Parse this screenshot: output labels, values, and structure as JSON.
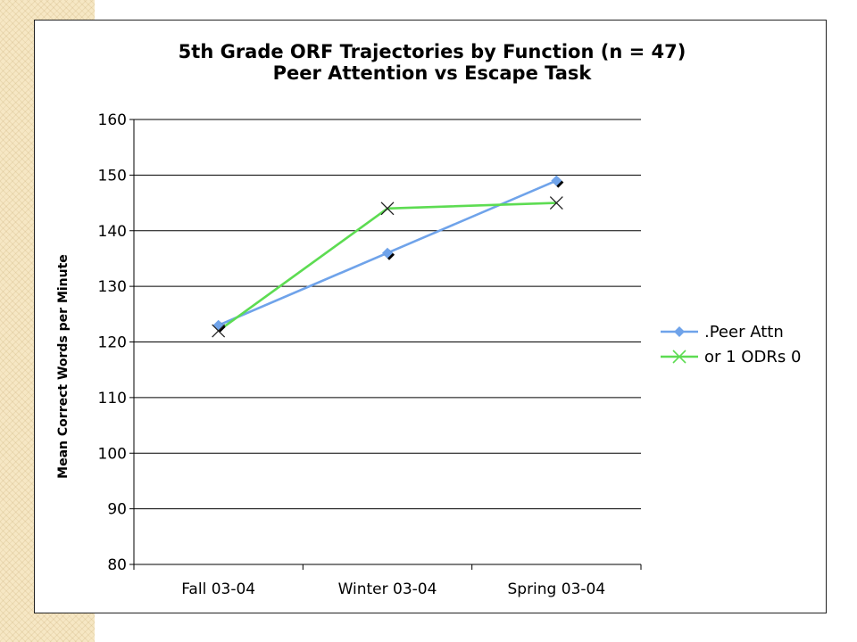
{
  "chart_data": {
    "type": "line",
    "title": "5th Grade ORF Trajectories by Function (n = 47)",
    "subtitle": "Peer Attention vs Escape Task",
    "ylabel": "Mean Correct Words per Minute",
    "xlabel": "",
    "categories": [
      "Fall 03-04",
      "Winter 03-04",
      "Spring 03-04"
    ],
    "ylim": [
      80,
      160
    ],
    "yticks": [
      80,
      90,
      100,
      110,
      120,
      130,
      140,
      150,
      160
    ],
    "grid": true,
    "legend_position": "right",
    "series": [
      {
        "name": ".Peer Attn",
        "values": [
          123,
          136,
          149
        ],
        "color": "#6fa3ea",
        "marker": "diamond"
      },
      {
        "name": "or 1 ODRs 0",
        "values": [
          122,
          144,
          145
        ],
        "color": "#5ddc52",
        "marker": "x"
      }
    ]
  }
}
